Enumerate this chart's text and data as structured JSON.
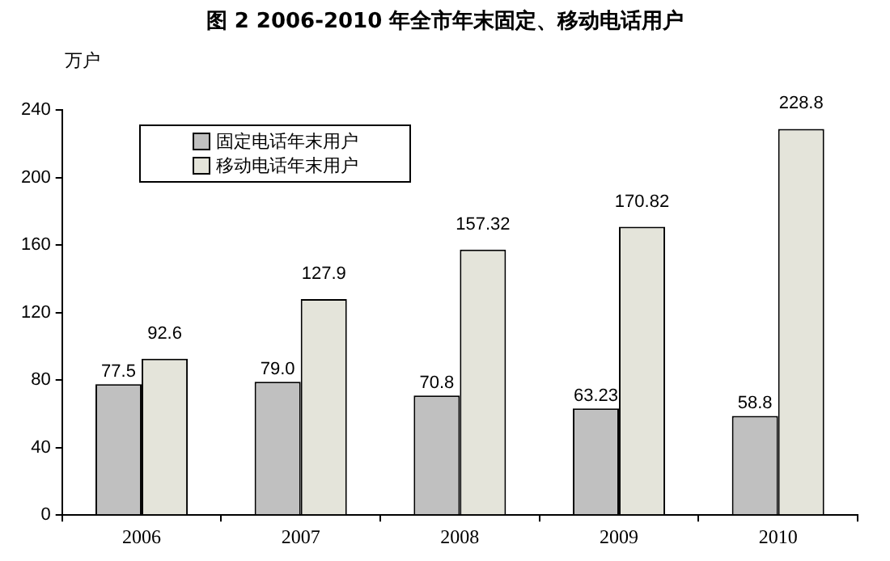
{
  "chart_data": {
    "type": "bar",
    "title": "图 2  2006-2010 年全市年末固定、移动电话用户",
    "ylabel": "万户",
    "categories": [
      "2006",
      "2007",
      "2008",
      "2009",
      "2010"
    ],
    "series": [
      {
        "name": "固定电话年末用户",
        "color": "#c0c0c0",
        "values": [
          77.5,
          79.0,
          70.8,
          63.23,
          58.8
        ],
        "value_labels": [
          "77.5",
          "79.0",
          "70.8",
          "63.23",
          "58.8"
        ]
      },
      {
        "name": "移动电话年末用户",
        "color": "#e4e4da",
        "values": [
          92.6,
          127.9,
          157.32,
          170.82,
          228.8
        ],
        "value_labels": [
          "92.6",
          "127.9",
          "157.32",
          "170.82",
          "228.8"
        ]
      }
    ],
    "ylim": [
      0,
      240
    ],
    "yticks": [
      0,
      40,
      80,
      120,
      160,
      200,
      240
    ],
    "grid": false,
    "legend": "top left"
  }
}
